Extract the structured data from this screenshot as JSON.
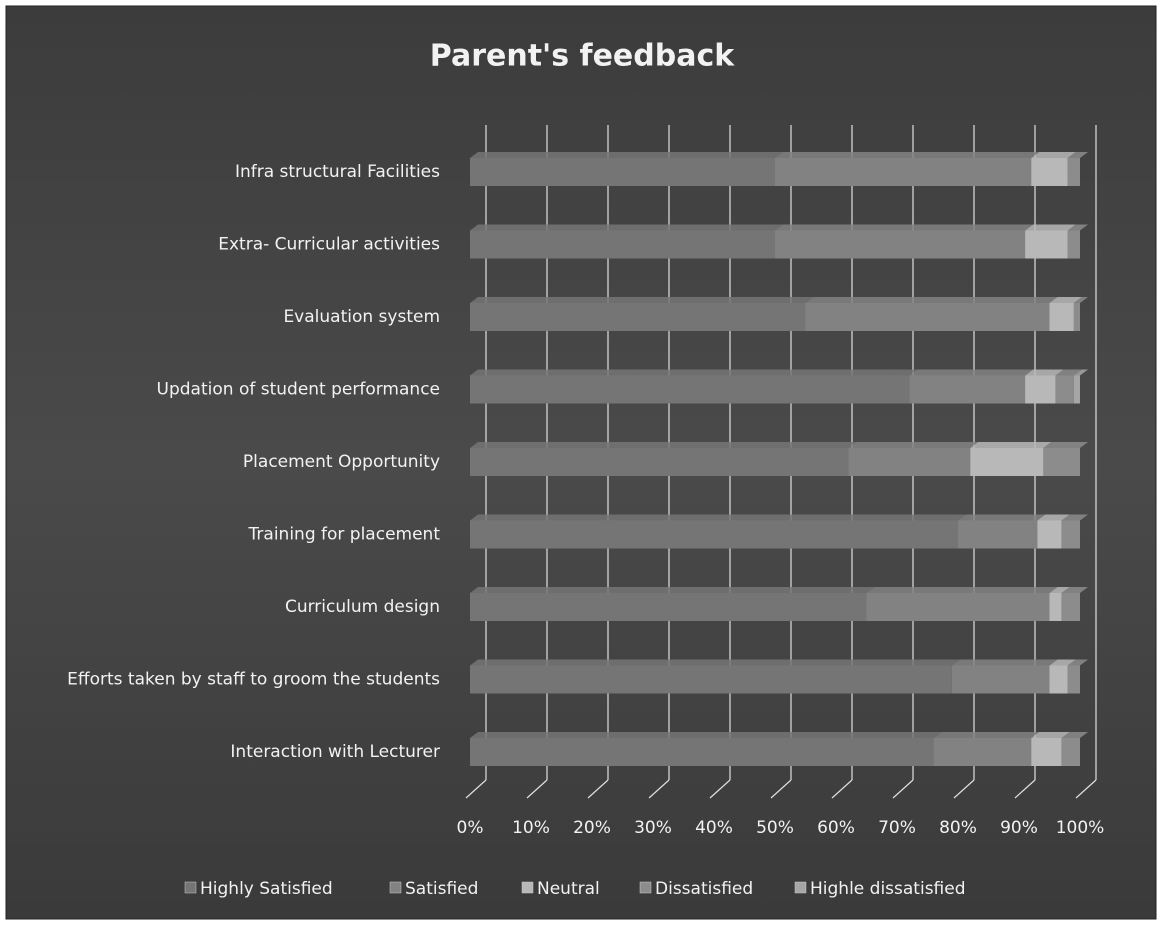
{
  "chart_data": {
    "type": "stacked_barh_percent",
    "title": "Parent's feedback",
    "categories": [
      "Infra structural  Facilities",
      "Extra- Curricular activities",
      "Evaluation system",
      "Updation of student performance",
      "Placement Opportunity",
      "Training for placement",
      "Curriculum design",
      "Efforts taken by staff to groom the students",
      "Interaction with Lecturer"
    ],
    "series": [
      {
        "name": "Highly Satisfied",
        "color": "#757575",
        "values": [
          50,
          50,
          55,
          72,
          62,
          80,
          65,
          79,
          76
        ]
      },
      {
        "name": "Satisfied",
        "color": "#828282",
        "values": [
          42,
          41,
          40,
          19,
          20,
          13,
          30,
          16,
          16
        ]
      },
      {
        "name": "Neutral",
        "color": "#b8b8b8",
        "values": [
          6,
          7,
          4,
          5,
          12,
          4,
          2,
          3,
          5
        ]
      },
      {
        "name": "Dissatisfied",
        "color": "#8c8c8c",
        "values": [
          2,
          2,
          1,
          3,
          6,
          3,
          3,
          2,
          3
        ]
      },
      {
        "name": "Highle dissatisfied",
        "color": "#a6a6a6",
        "values": [
          0,
          0,
          0,
          1,
          0,
          0,
          0,
          0,
          0
        ]
      }
    ],
    "xlim": [
      0,
      100
    ],
    "xticks": [
      {
        "value": 0,
        "label": "0%"
      },
      {
        "value": 10,
        "label": "10%"
      },
      {
        "value": 20,
        "label": "20%"
      },
      {
        "value": 30,
        "label": "30%"
      },
      {
        "value": 40,
        "label": "40%"
      },
      {
        "value": 50,
        "label": "50%"
      },
      {
        "value": 60,
        "label": "60%"
      },
      {
        "value": 70,
        "label": "70%"
      },
      {
        "value": 80,
        "label": "80%"
      },
      {
        "value": 90,
        "label": "90%"
      },
      {
        "value": 100,
        "label": "100%"
      }
    ],
    "grid": true,
    "legend": "bottom"
  }
}
